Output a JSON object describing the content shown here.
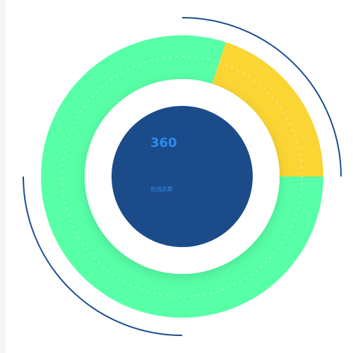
{
  "chart_data": {
    "type": "donut",
    "values": [
      288,
      72
    ],
    "colors": [
      "#57ffa7",
      "#fad533"
    ],
    "start_angle": 90,
    "center_value": 360,
    "center_label": "在线总数"
  }
}
